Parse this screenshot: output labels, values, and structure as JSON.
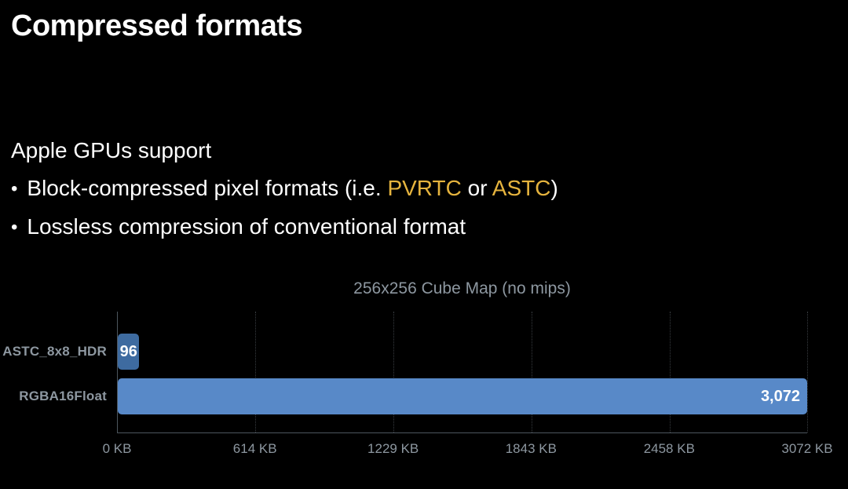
{
  "slide": {
    "title": "Compressed formats",
    "intro": "Apple GPUs support",
    "bullet_char": "•",
    "bullets": [
      {
        "segments": [
          {
            "text": "Block-compressed pixel formats (i.e. "
          },
          {
            "text": "PVRTC",
            "highlight": true
          },
          {
            "text": " or "
          },
          {
            "text": "ASTC",
            "highlight": true
          },
          {
            "text": ")"
          }
        ]
      },
      {
        "segments": [
          {
            "text": "Lossless compression of conventional format"
          }
        ]
      }
    ]
  },
  "colors": {
    "background": "#000000",
    "text": "#ffffff",
    "highlight": "#e6b43e",
    "muted": "#8d97a0",
    "axis": "#4d565e",
    "gridline": "#383c40"
  },
  "chart_data": {
    "type": "bar",
    "orientation": "horizontal",
    "title": "256x256 Cube Map (no mips)",
    "categories": [
      "ASTC_8x8_HDR",
      "RGBA16Float"
    ],
    "values": [
      96,
      3072
    ],
    "value_labels": [
      "96",
      "3,072"
    ],
    "value_label_align": [
      "center",
      "right"
    ],
    "bar_colors": [
      "#3e6ba0",
      "#5889c8"
    ],
    "xlim": [
      0,
      3072
    ],
    "x_ticks": [
      {
        "value": 0,
        "label": "0 KB"
      },
      {
        "value": 614,
        "label": "614 KB"
      },
      {
        "value": 1229,
        "label": "1229 KB"
      },
      {
        "value": 1843,
        "label": "1843 KB"
      },
      {
        "value": 2458,
        "label": "2458 KB"
      },
      {
        "value": 3072,
        "label": "3072 KB"
      }
    ],
    "grid": "vertical-dotted",
    "legend": "none",
    "xlabel": "",
    "ylabel": ""
  }
}
